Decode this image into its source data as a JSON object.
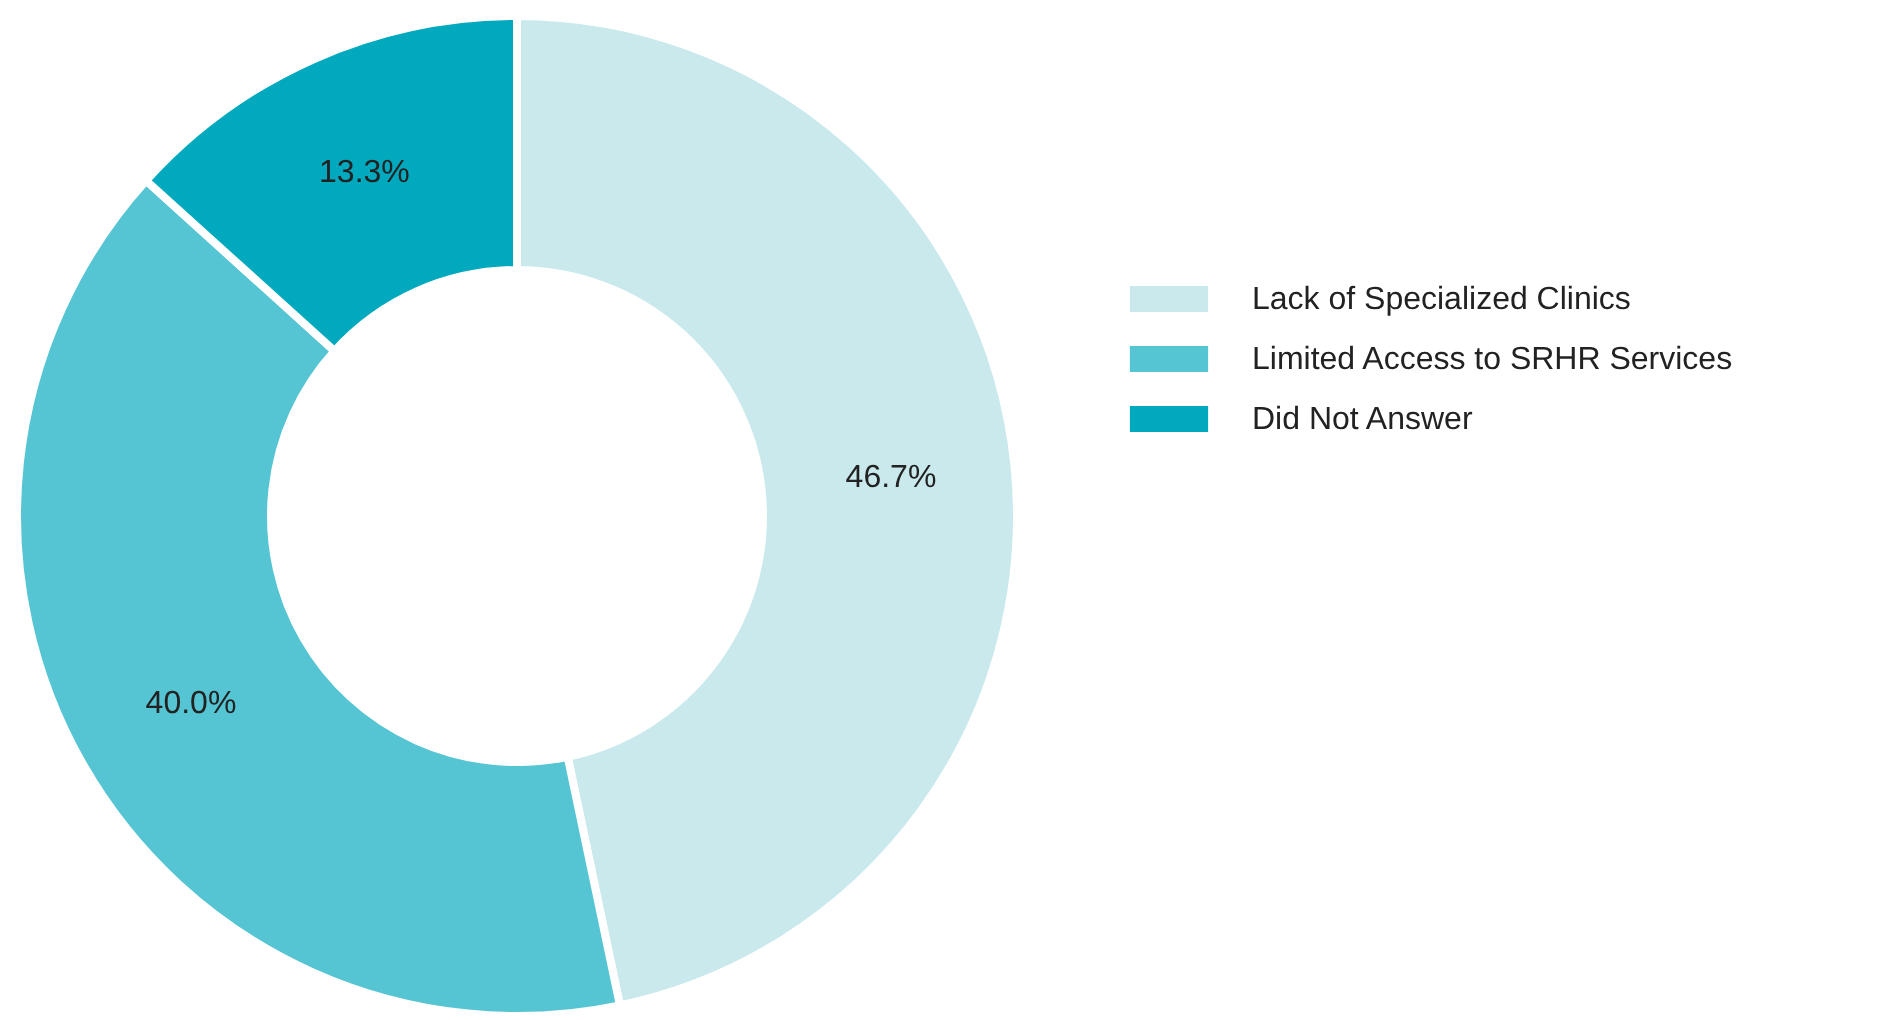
{
  "chart_data": {
    "type": "donut",
    "categories": [
      "Lack of Specialized Clinics",
      "Limited Access to SRHR Services",
      "Did Not Answer"
    ],
    "values": [
      46.7,
      40.0,
      13.3
    ],
    "value_labels": [
      "46.7%",
      "40.0%",
      "13.3%"
    ],
    "colors": [
      "#c9e9ec",
      "#55c5d3",
      "#00a9bd"
    ],
    "legend": "right"
  }
}
